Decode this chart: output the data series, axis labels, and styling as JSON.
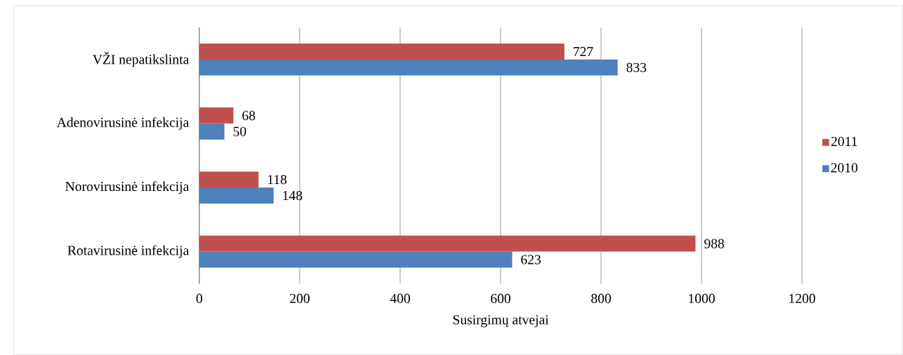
{
  "chart_data": {
    "type": "bar",
    "orientation": "horizontal",
    "xlabel": "Susirgimų atvejai",
    "categories": [
      "VŽI nepatikslinta",
      "Adenovirusinė infekcija",
      "Norovirusinė infekcija",
      "Rotavirusinė infekcija"
    ],
    "series": [
      {
        "name": "2011",
        "color": "#c0504d",
        "values": [
          727,
          68,
          118,
          988
        ]
      },
      {
        "name": "2010",
        "color": "#4f81bd",
        "values": [
          833,
          50,
          148,
          623
        ]
      }
    ],
    "xlim": [
      0,
      1200
    ],
    "xticks": [
      0,
      200,
      400,
      600,
      800,
      1000,
      1200
    ],
    "grid": "x",
    "legend": "right",
    "data_labels": true
  }
}
